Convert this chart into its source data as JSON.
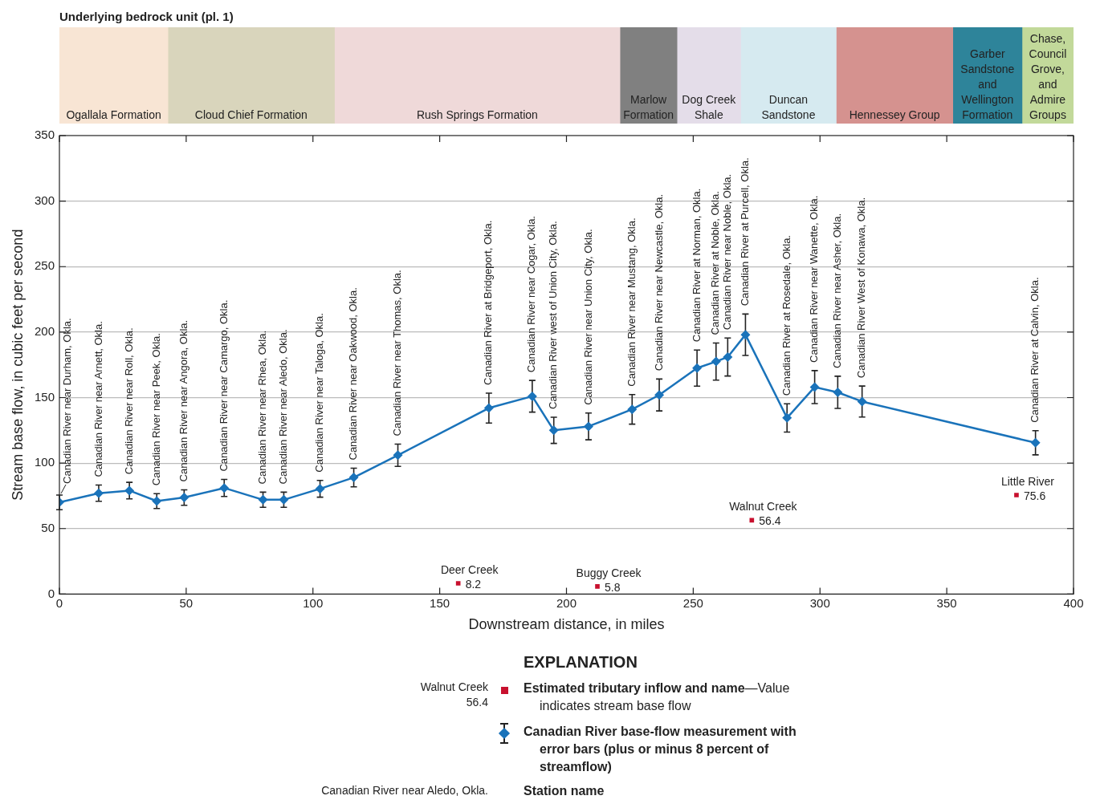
{
  "chart_data": [
    {
      "type": "bar",
      "orientation": "horizontal",
      "stacked": true,
      "title": "Underlying bedrock unit (pl. 1)",
      "categories": [
        null
      ],
      "xlim": [
        0,
        400
      ],
      "tick_labels": false,
      "series": [
        {
          "name": "Ogallala Formation",
          "color": "#f8e5d4",
          "values": [
            42.8
          ]
        },
        {
          "name": "Cloud Chief Formation",
          "color": "#d9d5bc",
          "values": [
            65.7
          ]
        },
        {
          "name": "Rush Springs Formation",
          "color": "#efd9d9",
          "values": [
            112.6
          ]
        },
        {
          "name": "Marlow Formation",
          "color": "#808080",
          "values": [
            22.5
          ]
        },
        {
          "name": "Dog Creek Shale",
          "color": "#e4dde9",
          "values": [
            25.1
          ]
        },
        {
          "name": "Duncan Sandstone",
          "color": "#d6eaf0",
          "values": [
            37.7
          ]
        },
        {
          "name": "Hennessey Group",
          "color": "#d5928f",
          "values": [
            46
          ]
        },
        {
          "name": "Garber Sandstone and Wellington Formation",
          "color": "#2e849a",
          "values": [
            27.3
          ]
        },
        {
          "name": "Chase, Council Grove, and Admire Groups",
          "color": "#c2d99a",
          "values": [
            20.3
          ]
        }
      ]
    },
    {
      "type": "line",
      "xlabel": "Downstream distance, in miles",
      "ylabel": "Stream base flow, in cubic feet per second",
      "legend_title": "EXPLANATION",
      "legend": "bottom",
      "grid": "y",
      "xlim": [
        0,
        400
      ],
      "xticks": [
        0,
        50,
        100,
        150,
        200,
        250,
        300,
        350,
        400
      ],
      "ylim": [
        0,
        350
      ],
      "yticks": [
        0,
        50,
        100,
        150,
        200,
        250,
        300,
        350
      ],
      "series": [
        {
          "name": "Estimated tributary inflow and name—Value indicates stream base flow",
          "type": "scatter",
          "color": "#c8102e",
          "marker": "square",
          "x": [
            157.3,
            212.2,
            273.1,
            377.5
          ],
          "values": [
            8.2,
            5.8,
            56.4,
            75.6
          ],
          "value_labels": [
            "8.2",
            "5.8",
            "56.4",
            "75.6"
          ]
        },
        {
          "name": "Canadian River base-flow measurement with error bars (plus or minus 8 percent of streamflow)",
          "type": "line",
          "color": "#1a73ba",
          "marker": "diamond",
          "x": [
            0,
            15.5,
            27.6,
            38.4,
            49.2,
            65,
            80.3,
            88.5,
            102.8,
            116.1,
            133.5,
            169.4,
            186.5,
            195,
            208.7,
            225.9,
            236.6,
            251.5,
            259,
            263.6,
            270.6,
            287,
            297.9,
            307,
            316.6,
            385
          ],
          "values": [
            70,
            77,
            79,
            71,
            73.7,
            81,
            72,
            72,
            80.4,
            89,
            106,
            142,
            151,
            125,
            128,
            141,
            152,
            172.5,
            177.5,
            181,
            198,
            134.5,
            158,
            154,
            147,
            115.5
          ],
          "errors": [
            5.6,
            6.2,
            6.3,
            5.7,
            5.9,
            6.5,
            5.8,
            5.8,
            6.4,
            7.1,
            8.5,
            11.4,
            12.1,
            10,
            10.2,
            11.3,
            12.2,
            13.8,
            14.2,
            14.5,
            15.8,
            10.8,
            12.6,
            12.3,
            11.8,
            9.2
          ]
        }
      ],
      "annotations": [
        "Walnut Creek",
        "56.4",
        "Canadian River near Aledo, Okla.",
        "Station name",
        {
          "text": "Canadian River near Durham, Okla.",
          "x": 0,
          "y": 70
        },
        {
          "text": "Canadian River near Arnett, Okla.",
          "x": 15.5,
          "y": 77
        },
        {
          "text": "Canadian River near Roll, Okla.",
          "x": 27.6,
          "y": 79
        },
        {
          "text": "Canadian River near Peek, Okla.",
          "x": 38.4,
          "y": 71
        },
        {
          "text": "Canadian River near Angora, Okla.",
          "x": 49.2,
          "y": 73.7
        },
        {
          "text": "Canadian River near Camargo, Okla.",
          "x": 65,
          "y": 81
        },
        {
          "text": "Canadian River near Rhea, Okla.",
          "x": 80.3,
          "y": 72
        },
        {
          "text": "Canadian River near Aledo, Okla.",
          "x": 88.5,
          "y": 72
        },
        {
          "text": "Canadian River near Taloga, Okla.",
          "x": 102.8,
          "y": 80.4
        },
        {
          "text": "Canadian River near Oakwood, Okla.",
          "x": 116.1,
          "y": 89
        },
        {
          "text": "Canadian River near Thomas, Okla.",
          "x": 133.5,
          "y": 106
        },
        {
          "text": "Canadian River at Bridgeport, Okla.",
          "x": 169.4,
          "y": 142
        },
        {
          "text": "Canadian River near Cogar, Okla.",
          "x": 186.5,
          "y": 151
        },
        {
          "text": "Canadian River west of Union City, Okla.",
          "x": 195,
          "y": 125
        },
        {
          "text": "Canadian River near Union City, Okla.",
          "x": 208.7,
          "y": 128
        },
        {
          "text": "Canadian River near Mustang, Okla.",
          "x": 225.9,
          "y": 141
        },
        {
          "text": "Canadian River near Newcastle, Okla.",
          "x": 236.6,
          "y": 152
        },
        {
          "text": "Canadian River at Norman, Okla.",
          "x": 251.5,
          "y": 172.5
        },
        {
          "text": "Canadian River at Noble, Okla.",
          "x": 259,
          "y": 177.5
        },
        {
          "text": "Canadian River near Noble, Okla.",
          "x": 263.6,
          "y": 181
        },
        {
          "text": "Canadian River at Purcell, Okla.",
          "x": 270.6,
          "y": 198
        },
        {
          "text": "Canadian River at Rosedale, Okla.",
          "x": 287,
          "y": 134.5
        },
        {
          "text": "Canadian River near Wanette, Okla.",
          "x": 297.9,
          "y": 158
        },
        {
          "text": "Canadian River near Asher, Okla.",
          "x": 307,
          "y": 154
        },
        {
          "text": "Canadian River West of Konawa, Okla.",
          "x": 316.6,
          "y": 147
        },
        {
          "text": "Canadian River at Calvin, Okla.",
          "x": 385,
          "y": 115.5
        },
        {
          "text": "Deer Creek",
          "x": 157.3,
          "y": 8.2
        },
        {
          "text": "Buggy Creek",
          "x": 212.2,
          "y": 5.8
        },
        {
          "text": "Walnut Creek",
          "x": 273.1,
          "y": 56.4
        },
        {
          "text": "Little River",
          "x": 377.5,
          "y": 75.6
        }
      ]
    }
  ]
}
